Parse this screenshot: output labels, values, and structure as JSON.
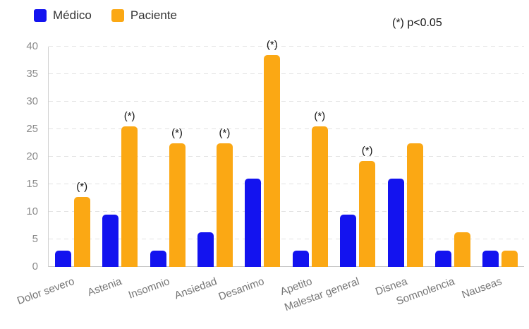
{
  "legend": {
    "items": [
      {
        "label": "Médico",
        "color": "#1313ef"
      },
      {
        "label": "Paciente",
        "color": "#fba814"
      }
    ]
  },
  "annotation": {
    "text": "(*) p<0.05"
  },
  "chart_data": {
    "type": "bar",
    "title": "",
    "xlabel": "",
    "ylabel": "",
    "categories": [
      "Dolor severo",
      "Astenia",
      "Insomnio",
      "Ansiedad",
      "Desanimo",
      "Apetito",
      "Malestar general",
      "Disnea",
      "Somnolencia",
      "Nauseas"
    ],
    "series": [
      {
        "name": "Médico",
        "color": "#1313ef",
        "values": [
          3,
          9.5,
          3,
          6.3,
          16,
          3,
          9.5,
          16,
          3,
          3
        ]
      },
      {
        "name": "Paciente",
        "color": "#fba814",
        "values": [
          12.7,
          25.5,
          22.5,
          22.5,
          38.5,
          25.5,
          19.2,
          22.5,
          6.3,
          3
        ]
      }
    ],
    "significance_marker": "(*)",
    "significance_on_paciente": [
      true,
      true,
      true,
      true,
      true,
      true,
      true,
      false,
      false,
      false
    ],
    "significance_note": "(*) p<0.05",
    "ylim": [
      0,
      40
    ],
    "ytick_step": 5,
    "yticks": [
      0,
      5,
      10,
      15,
      20,
      25,
      30,
      35,
      40
    ],
    "grid": "horizontal-dashed",
    "legend_position": "top-left"
  }
}
